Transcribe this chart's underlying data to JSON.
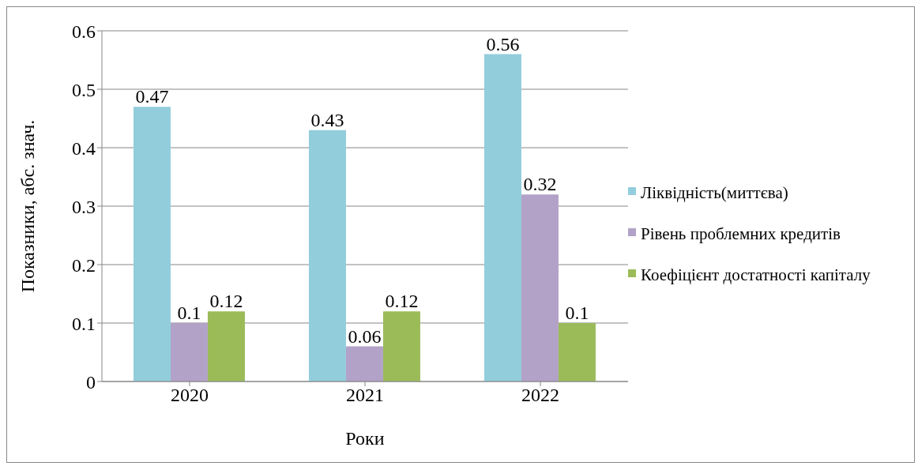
{
  "chart_data": {
    "type": "bar",
    "xlabel": "Роки",
    "ylabel": "Показники, абс. знач.",
    "categories": [
      "2020",
      "2021",
      "2022"
    ],
    "series": [
      {
        "name": "Ліквідність(миттєва)",
        "color": "#92cddc",
        "values": [
          0.47,
          0.43,
          0.56
        ]
      },
      {
        "name": "Рівень проблемних кредитів",
        "color": "#b2a2c7",
        "values": [
          0.1,
          0.06,
          0.32
        ]
      },
      {
        "name": "Коефіцієнт достатності капіталу",
        "color": "#9bbb59",
        "values": [
          0.12,
          0.12,
          0.1
        ]
      }
    ],
    "ylim": [
      0,
      0.6
    ],
    "yticks": [
      0,
      0.1,
      0.2,
      0.3,
      0.4,
      0.5,
      0.6
    ],
    "grid": "y",
    "legend": "right",
    "data_labels": true
  }
}
